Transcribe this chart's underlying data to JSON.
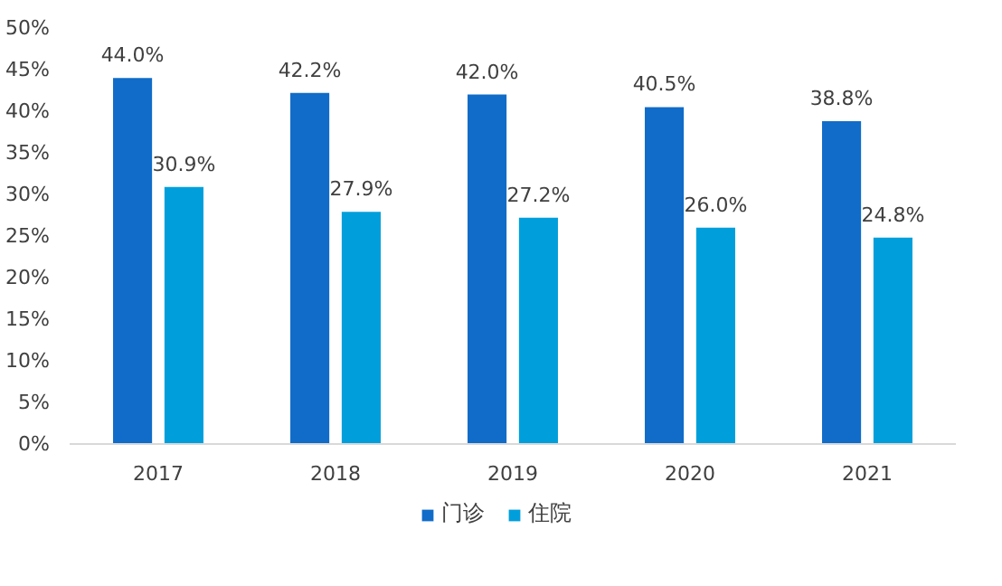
{
  "chart_data": {
    "type": "bar",
    "categories": [
      "2017",
      "2018",
      "2019",
      "2020",
      "2021"
    ],
    "series": [
      {
        "name": "门诊",
        "color": "#106cc8",
        "values": [
          44.0,
          42.2,
          42.0,
          40.5,
          38.8
        ],
        "value_labels": [
          "44.0%",
          "42.2%",
          "42.0%",
          "40.5%",
          "38.8%"
        ]
      },
      {
        "name": "住院",
        "color": "#009fdb",
        "values": [
          30.9,
          27.9,
          27.2,
          26.0,
          24.8
        ],
        "value_labels": [
          "30.9%",
          "27.9%",
          "27.2%",
          "26.0%",
          "24.8%"
        ]
      }
    ],
    "ylim": [
      0,
      50
    ],
    "yticks": [
      {
        "value": 0,
        "label": "0%"
      },
      {
        "value": 5,
        "label": "5%"
      },
      {
        "value": 10,
        "label": "10%"
      },
      {
        "value": 15,
        "label": "15%"
      },
      {
        "value": 20,
        "label": "20%"
      },
      {
        "value": 25,
        "label": "25%"
      },
      {
        "value": 30,
        "label": "30%"
      },
      {
        "value": 35,
        "label": "35%"
      },
      {
        "value": 40,
        "label": "40%"
      },
      {
        "value": 45,
        "label": "45%"
      },
      {
        "value": 50,
        "label": "50%"
      }
    ],
    "grid": false,
    "legend": "bottom"
  }
}
